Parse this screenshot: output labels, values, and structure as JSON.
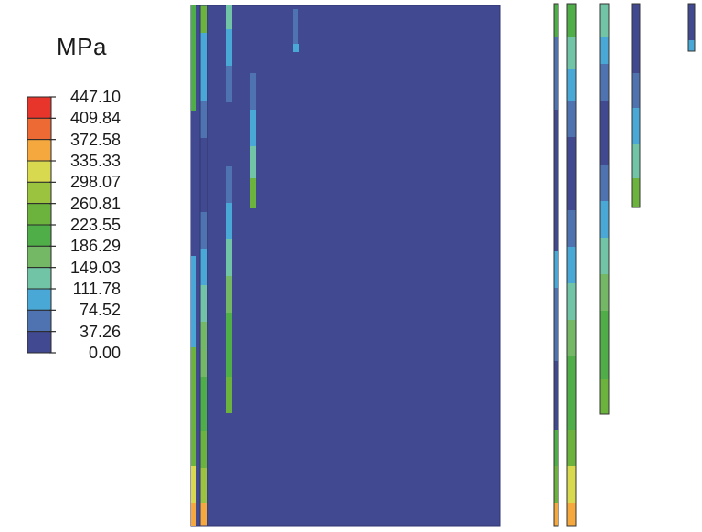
{
  "unit": "MPa",
  "legend": {
    "labels": [
      "447.10",
      "409.84",
      "372.58",
      "335.33",
      "298.07",
      "260.81",
      "223.55",
      "186.29",
      "149.03",
      "111.78",
      "74.52",
      "37.26",
      "0.00"
    ],
    "colors": [
      "#e8352c",
      "#ee6a35",
      "#f5a83e",
      "#d8d94e",
      "#9cc33f",
      "#6cb33e",
      "#4fae48",
      "#74b866",
      "#72c4a6",
      "#4aa8d6",
      "#4e73b0",
      "#414a91"
    ]
  }
}
